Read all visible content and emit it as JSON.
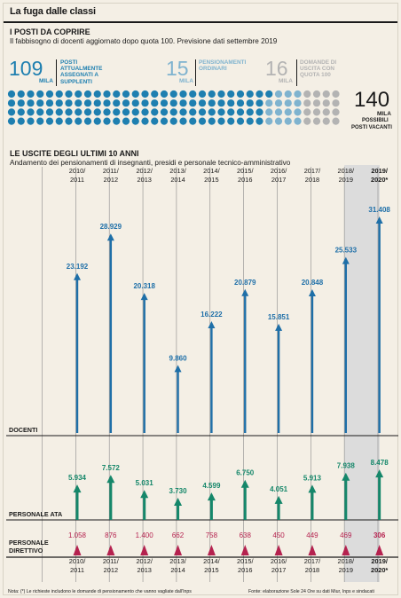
{
  "title": "La fuga dalle classi",
  "section1": {
    "heading": "I POSTI DA COPRIRE",
    "subtitle": "Il fabbisogno di docenti aggiornato dopo quota 100. Previsione dati settembre 2019",
    "items": [
      {
        "value": "109",
        "unit": "MILA",
        "label": "POSTI ATTUALMENTE ASSEGNATI A SUPPLENTI",
        "color": "#1e7fb0"
      },
      {
        "value": "15",
        "unit": "MILA",
        "label": "PENSIONAMENTI ORDINARI",
        "color": "#7fb3cf"
      },
      {
        "value": "16",
        "unit": "MILA",
        "label": "DOMANDE DI USCITA CON QUOTA 100",
        "color": "#b3b3b3"
      }
    ],
    "total": {
      "value": "140",
      "unit": "MILA",
      "label1": "POSSIBILI",
      "label2": "POSTI VACANTI"
    }
  },
  "section2": {
    "heading": "LE USCITE DEGLI ULTIMI 10 ANNI",
    "subtitle": "Andamento dei pensionamenti di insegnanti, presidi e personale tecnico-amministrativo"
  },
  "chart_data": {
    "type": "bar",
    "categories": [
      "2010/2011",
      "2011/2012",
      "2012/2013",
      "2013/2014",
      "2014/2015",
      "2015/2016",
      "2016/2017",
      "2017/2018",
      "2018/2019",
      "2019/2020*"
    ],
    "category_lines": [
      [
        "2010/",
        "2011"
      ],
      [
        "2011/",
        "2012"
      ],
      [
        "2012/",
        "2013"
      ],
      [
        "2013/",
        "2014"
      ],
      [
        "2014/",
        "2015"
      ],
      [
        "2015/",
        "2016"
      ],
      [
        "2016/",
        "2017"
      ],
      [
        "2017/",
        "2018"
      ],
      [
        "2018/",
        "2019"
      ],
      [
        "2019/",
        "2020*"
      ]
    ],
    "series": [
      {
        "name": "DOCENTI",
        "values": [
          23192,
          28929,
          20318,
          9860,
          16222,
          20879,
          15851,
          20848,
          25533,
          31408
        ],
        "labels": [
          "23.192",
          "28.929",
          "20.318",
          "9.860",
          "16.222",
          "20.879",
          "15.851",
          "20.848",
          "25.533",
          "31.408"
        ],
        "color": "#1e6fa8"
      },
      {
        "name": "PERSONALE ATA",
        "values": [
          5934,
          7572,
          5031,
          3730,
          4599,
          6750,
          4051,
          5913,
          7938,
          8478
        ],
        "labels": [
          "5.934",
          "7.572",
          "5.031",
          "3.730",
          "4.599",
          "6.750",
          "4.051",
          "5.913",
          "7.938",
          "8.478"
        ],
        "color": "#15876a"
      },
      {
        "name": "PERSONALE DIRETTIVO",
        "name_lines": [
          "PERSONALE",
          "DIRETTIVO"
        ],
        "values": [
          1058,
          876,
          1400,
          662,
          758,
          638,
          450,
          449,
          469,
          306
        ],
        "labels": [
          "1.058",
          "876",
          "1.400",
          "662",
          "758",
          "638",
          "450",
          "449",
          "469",
          "306"
        ],
        "color": "#b5224f"
      }
    ],
    "highlight_category": "2019/2020*"
  },
  "footer": {
    "note": "Nota: (*) Le richieste includono le domande di pensionamento che vanno vagliate dall'Inps",
    "source": "Fonte: elaborazione Sole 24 Ore su dati Miur, Inps e sindacati"
  }
}
